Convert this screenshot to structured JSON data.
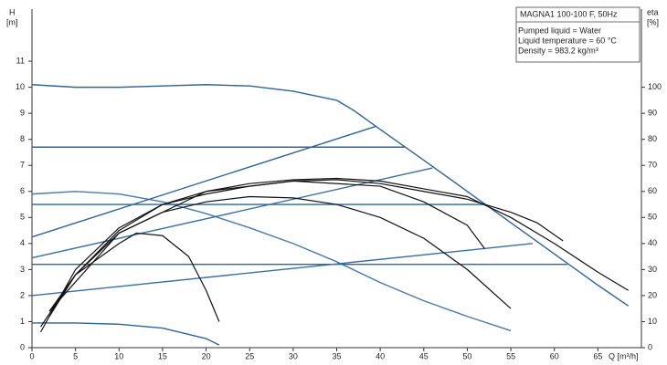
{
  "chart_data": {
    "type": "line",
    "title": "MAGNA1 100-100 F, 50Hz",
    "annotations": [
      "Pumped liquid = Water",
      "Liquid temperature = 60 °C",
      "Density = 983.2 kg/m³"
    ],
    "xlabel": "Q [m³/h]",
    "ylabel": [
      "H",
      "[m]"
    ],
    "y2label": [
      "eta",
      "[%]"
    ],
    "xlim": [
      0,
      70
    ],
    "ylim": [
      0,
      13
    ],
    "y2lim": [
      0,
      130
    ],
    "xticks": [
      0,
      5,
      10,
      15,
      20,
      25,
      30,
      35,
      40,
      45,
      50,
      55,
      60,
      65
    ],
    "yticks": [
      0,
      1,
      2,
      3,
      4,
      5,
      6,
      7,
      8,
      9,
      10,
      11
    ],
    "y2ticks": [
      0,
      10,
      20,
      30,
      40,
      50,
      60,
      70,
      80,
      90,
      100
    ],
    "grid": false,
    "series": [
      {
        "color": "#2f6496",
        "x": [
          0,
          5,
          10,
          15,
          20,
          25,
          30,
          35,
          37,
          39.5,
          45,
          50,
          55,
          60,
          65,
          68.5
        ],
        "values": [
          10.1,
          10.0,
          10.0,
          10.05,
          10.1,
          10.05,
          9.85,
          9.5,
          9.1,
          8.5,
          7.2,
          6.0,
          4.8,
          3.6,
          2.4,
          1.6
        ]
      },
      {
        "color": "#4a78a8",
        "x": [
          0,
          5,
          10,
          15,
          20,
          25,
          30,
          35,
          40,
          45,
          50,
          55
        ],
        "values": [
          5.9,
          6.0,
          5.9,
          5.6,
          5.15,
          4.6,
          4.0,
          3.3,
          2.5,
          1.8,
          1.2,
          0.65
        ]
      },
      {
        "color": "#2f6496",
        "x": [
          0,
          5,
          10,
          15,
          20,
          21.5
        ],
        "values": [
          0.95,
          0.95,
          0.9,
          0.75,
          0.35,
          0.1
        ]
      },
      {
        "color": "#2f6496",
        "x": [
          0,
          42.8
        ],
        "values": [
          7.7,
          7.7
        ]
      },
      {
        "color": "#2f6496",
        "x": [
          0,
          52
        ],
        "values": [
          5.5,
          5.5
        ]
      },
      {
        "color": "#2f6496",
        "x": [
          0,
          61.5
        ],
        "values": [
          3.2,
          3.2
        ]
      },
      {
        "color": "#2f6496",
        "x": [
          0,
          39.5
        ],
        "values": [
          4.25,
          8.5
        ]
      },
      {
        "color": "#3b6ea0",
        "x": [
          0,
          46
        ],
        "values": [
          3.45,
          6.9
        ]
      },
      {
        "color": "#3b6ea0",
        "x": [
          0,
          57.5
        ],
        "values": [
          2.0,
          4.0
        ]
      },
      {
        "color": "#111111",
        "axis": "y2",
        "x": [
          1,
          5,
          10,
          15,
          20,
          25,
          30,
          35,
          40,
          45,
          50,
          55,
          60,
          65,
          68.5
        ],
        "values": [
          6,
          30,
          46,
          55,
          60,
          63,
          64.5,
          65,
          64,
          61,
          58,
          50,
          40,
          29,
          22
        ]
      },
      {
        "color": "#111111",
        "axis": "y2",
        "x": [
          2,
          5,
          10,
          15,
          20,
          25,
          30,
          35,
          40,
          45,
          50,
          55,
          58,
          61
        ],
        "values": [
          14,
          28,
          45,
          55,
          59,
          62,
          64,
          64.5,
          63,
          60,
          57,
          52,
          48,
          41
        ]
      },
      {
        "color": "#111111",
        "axis": "y2",
        "x": [
          2,
          5,
          10,
          15,
          20,
          25,
          30,
          35,
          40,
          45,
          50,
          55
        ],
        "values": [
          12,
          28,
          44,
          52,
          56,
          58,
          57.5,
          55,
          50,
          42,
          30,
          15
        ]
      },
      {
        "color": "#111111",
        "axis": "y2",
        "x": [
          2,
          10,
          20,
          30,
          40,
          45,
          50,
          52
        ],
        "values": [
          14,
          44,
          60,
          64,
          62,
          56,
          47,
          38
        ]
      },
      {
        "color": "#111111",
        "axis": "y2",
        "x": [
          1,
          5,
          10,
          12,
          15,
          18,
          20,
          21.5
        ],
        "values": [
          8,
          28,
          40,
          44,
          43,
          35,
          22,
          10
        ]
      }
    ]
  }
}
